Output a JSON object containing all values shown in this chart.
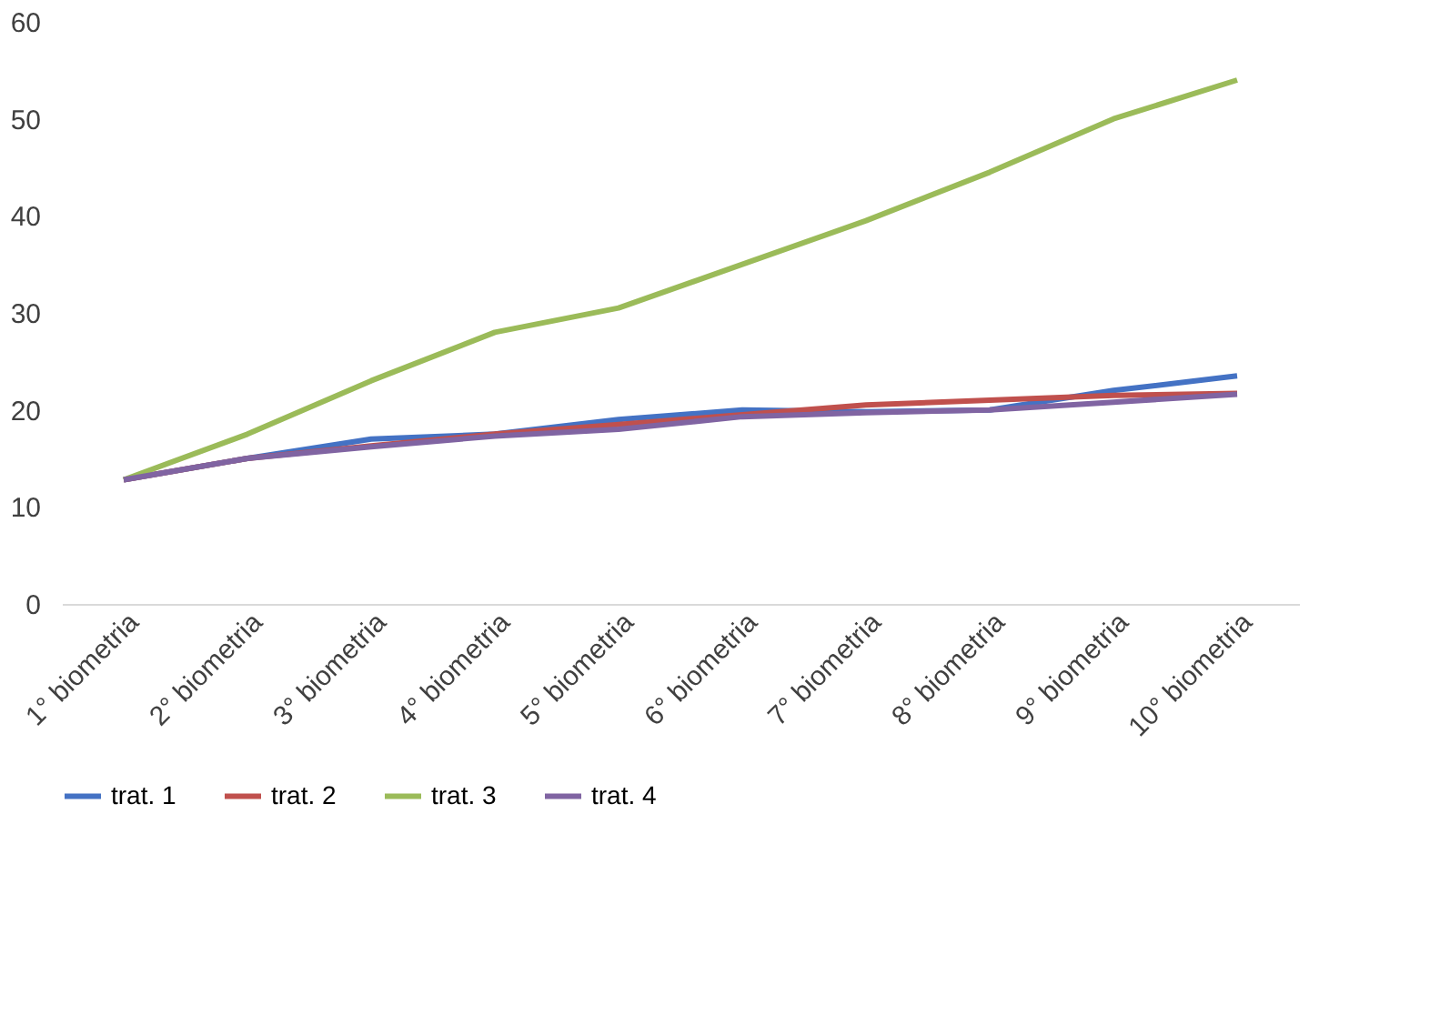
{
  "chart_data": {
    "type": "line",
    "categories": [
      "1° biometria",
      "2° biometria",
      "3° biometria",
      "4° biometria",
      "5° biometria",
      "6° biometria",
      "7° biometria",
      "8° biometria",
      "9° biometria",
      "10° biometria"
    ],
    "series": [
      {
        "name": "trat. 1",
        "color": "#4472c4",
        "values": [
          12.8,
          15,
          17,
          17.5,
          19,
          20,
          19.8,
          20,
          22,
          23.5
        ]
      },
      {
        "name": "trat. 2",
        "color": "#c0504d",
        "values": [
          12.8,
          15,
          16.3,
          17.5,
          18.5,
          19.5,
          20.5,
          21,
          21.5,
          21.7
        ]
      },
      {
        "name": "trat. 3",
        "color": "#9bbb59",
        "values": [
          12.8,
          17.5,
          23,
          28,
          30.5,
          35,
          39.5,
          44.5,
          50,
          54
        ]
      },
      {
        "name": "trat. 4",
        "color": "#8064a2",
        "values": [
          12.8,
          15,
          16.2,
          17.3,
          18,
          19.3,
          19.7,
          20,
          20.8,
          21.6
        ]
      }
    ],
    "ylim": [
      0,
      60
    ],
    "yticks": [
      0,
      10,
      20,
      30,
      40,
      50,
      60
    ],
    "grid": false,
    "legend": "bottom"
  }
}
